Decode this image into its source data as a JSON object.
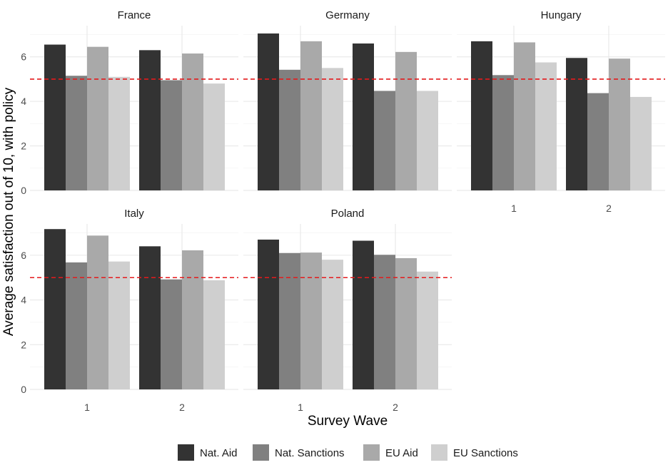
{
  "chart_data": {
    "type": "bar",
    "facets": [
      "France",
      "Germany",
      "Hungary",
      "Italy",
      "Poland"
    ],
    "categories": [
      "1",
      "2"
    ],
    "series": [
      {
        "name": "Nat. Aid",
        "color": "#333333"
      },
      {
        "name": "Nat. Sanctions",
        "color": "#808080"
      },
      {
        "name": "EU Aid",
        "color": "#a9a9a9"
      },
      {
        "name": "EU Sanctions",
        "color": "#cfcfcf"
      }
    ],
    "values": {
      "France": [
        [
          6.55,
          5.15,
          6.45,
          5.1
        ],
        [
          6.3,
          4.95,
          6.15,
          4.8
        ]
      ],
      "Germany": [
        [
          7.05,
          5.42,
          6.7,
          5.5
        ],
        [
          6.6,
          4.47,
          6.22,
          4.47
        ]
      ],
      "Hungary": [
        [
          6.7,
          5.18,
          6.65,
          5.75
        ],
        [
          5.95,
          4.37,
          5.92,
          4.2
        ]
      ],
      "Italy": [
        [
          7.17,
          5.68,
          6.88,
          5.72
        ],
        [
          6.4,
          4.92,
          6.22,
          4.88
        ]
      ],
      "Poland": [
        [
          6.7,
          6.1,
          6.12,
          5.8
        ],
        [
          6.65,
          6.02,
          5.87,
          5.27
        ]
      ]
    },
    "yticks": [
      0,
      2,
      4,
      6
    ],
    "ylim": [
      0,
      7.4
    ],
    "reference_line": 5,
    "xlabel": "Survey Wave",
    "ylabel": "Average satisfaction out of 10, with policy",
    "grid": true,
    "legend_position": "bottom"
  }
}
